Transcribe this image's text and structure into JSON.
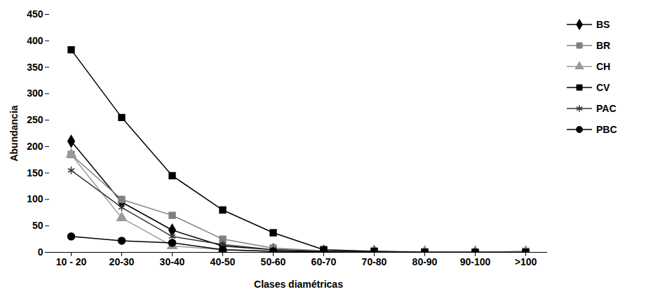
{
  "chart_data": {
    "type": "line",
    "x_label": "Clases diamétricas",
    "y_label": "Abundancia",
    "categories": [
      "10 - 20",
      "20-30",
      "30-40",
      "40-50",
      "50-60",
      "60-70",
      "70-80",
      "80-90",
      "90-100",
      ">100"
    ],
    "series": [
      {
        "name": "BS",
        "color": "#000000",
        "marker": "diamond",
        "values": [
          210,
          95,
          42,
          12,
          5,
          2,
          1,
          0,
          0,
          0
        ]
      },
      {
        "name": "BR",
        "color": "#808080",
        "marker": "square",
        "values": [
          185,
          100,
          70,
          25,
          8,
          3,
          2,
          1,
          0,
          2
        ]
      },
      {
        "name": "CH",
        "color": "#9a9a9a",
        "marker": "triangle",
        "values": [
          185,
          65,
          12,
          5,
          2,
          1,
          0,
          0,
          0,
          0
        ]
      },
      {
        "name": "CV",
        "color": "#000000",
        "marker": "square",
        "values": [
          383,
          255,
          145,
          80,
          37,
          5,
          2,
          0,
          0,
          0
        ]
      },
      {
        "name": "PAC",
        "color": "#333333",
        "marker": "asterisk",
        "values": [
          155,
          85,
          30,
          15,
          5,
          2,
          1,
          0,
          0,
          0
        ]
      },
      {
        "name": "PBC",
        "color": "#000000",
        "marker": "circle",
        "values": [
          30,
          22,
          18,
          5,
          2,
          1,
          0,
          0,
          0,
          0
        ]
      }
    ],
    "ylim": [
      0,
      450
    ],
    "yticks": [
      0,
      50,
      100,
      150,
      200,
      250,
      300,
      350,
      400,
      450
    ],
    "grid": false,
    "legend": "right"
  }
}
